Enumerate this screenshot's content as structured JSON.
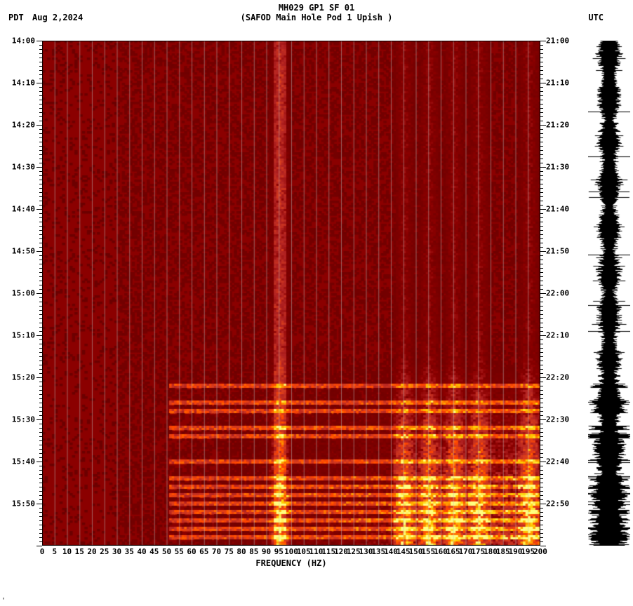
{
  "header": {
    "title_line1": "MH029 GP1 SF 01",
    "title_line2": "(SAFOD Main Hole Pod 1 Upish )",
    "tz_left": "PDT",
    "date": "Aug 2,2024",
    "tz_right": "UTC"
  },
  "spectrogram": {
    "type": "heatmap",
    "x_axis_title": "FREQUENCY (HZ)",
    "x_min": 0,
    "x_max": 200,
    "x_tick_step": 5,
    "x_ticks": [
      0,
      5,
      10,
      15,
      20,
      25,
      30,
      35,
      40,
      45,
      50,
      55,
      60,
      65,
      70,
      75,
      80,
      85,
      90,
      95,
      100,
      105,
      110,
      115,
      120,
      125,
      130,
      135,
      140,
      145,
      150,
      155,
      160,
      165,
      170,
      175,
      180,
      185,
      190,
      195,
      200
    ],
    "y_left_label_ticks": [
      "14:00",
      "14:10",
      "14:20",
      "14:30",
      "14:40",
      "14:50",
      "15:00",
      "15:10",
      "15:20",
      "15:30",
      "15:40",
      "15:50"
    ],
    "y_left_minutes": [
      0,
      10,
      20,
      30,
      40,
      50,
      60,
      70,
      80,
      90,
      100,
      110
    ],
    "y_right_label_ticks": [
      "21:00",
      "21:10",
      "21:20",
      "21:30",
      "21:40",
      "21:50",
      "22:00",
      "22:10",
      "22:20",
      "22:30",
      "22:40",
      "22:50"
    ],
    "y_right_minutes": [
      0,
      10,
      20,
      30,
      40,
      50,
      60,
      70,
      80,
      90,
      100,
      110
    ],
    "y_total_minutes": 120,
    "minor_tick_minutes": 1,
    "background_color": "#8b0000",
    "gridline_color": "#bfbfbf",
    "text_color": "#000000",
    "font_size_labels": 11,
    "font_size_title": 12,
    "colormap_stops": [
      "#6a0000",
      "#8b0000",
      "#b22222",
      "#d73c1e",
      "#ff4500",
      "#ff8c00",
      "#ffd000",
      "#ffff80"
    ],
    "hot_bands_hz": [
      95,
      145,
      155,
      165,
      175,
      195
    ],
    "activity_rows_minutes": [
      82,
      86,
      88,
      92,
      94,
      100,
      104,
      106,
      108,
      110,
      112,
      114,
      116,
      118
    ]
  },
  "waveform": {
    "type": "waveform",
    "color": "#000000",
    "background_color": "#ffffff",
    "amplitude_max": 1.0,
    "seed": 29
  },
  "footer": {
    "mark": "'"
  }
}
